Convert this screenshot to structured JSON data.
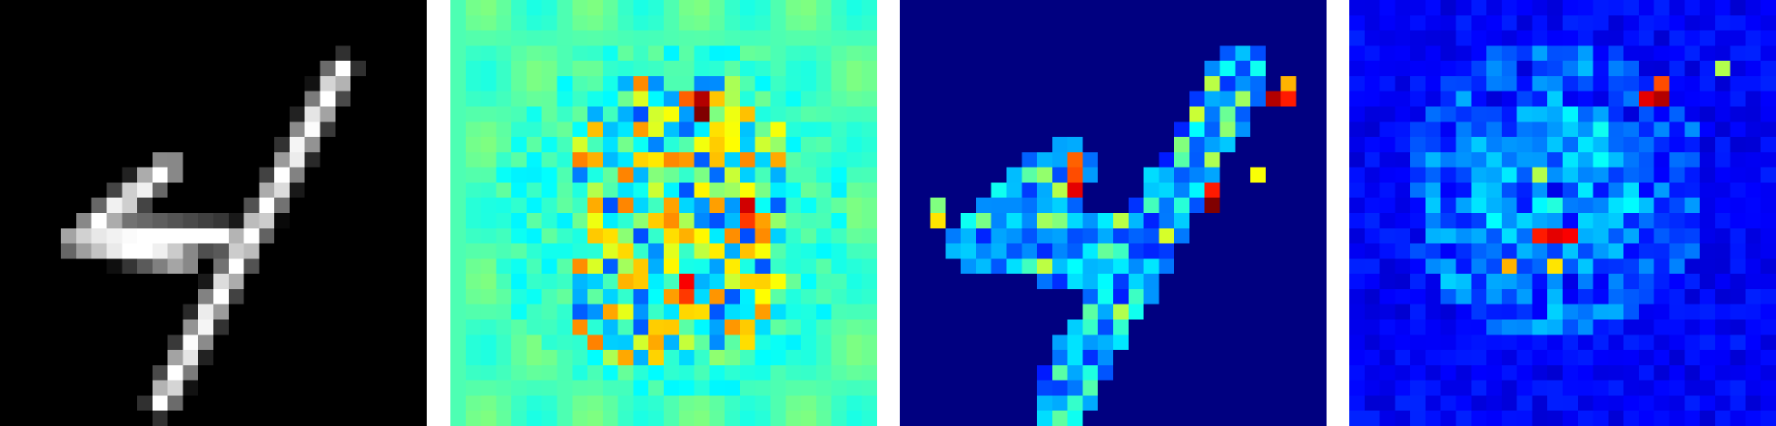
{
  "figure": {
    "panels": [
      {
        "name": "input-digit",
        "colormap": "gray",
        "background": "#000000"
      },
      {
        "name": "attribution-map",
        "colormap": "jet",
        "background": "#22ffd8"
      },
      {
        "name": "activation-map",
        "colormap": "jet",
        "background": "#000080"
      },
      {
        "name": "noise-map",
        "colormap": "jet",
        "background": "#00008f"
      }
    ],
    "grid_size": 28
  }
}
